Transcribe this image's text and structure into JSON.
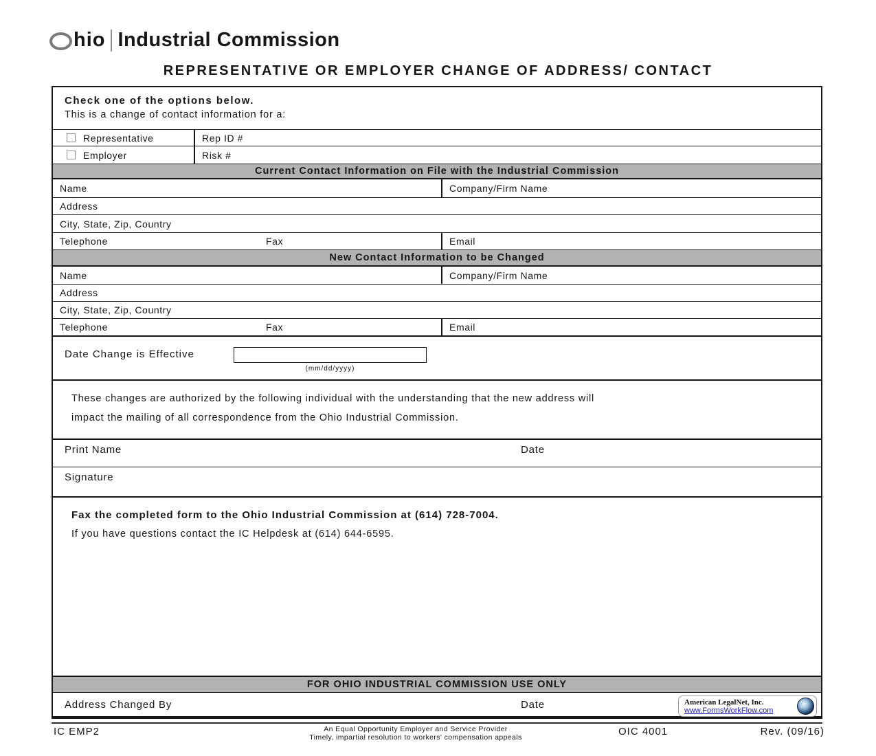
{
  "logo": {
    "name_rest": "hio",
    "division": "Industrial Commission"
  },
  "title": "REPRESENTATIVE OR EMPLOYER CHANGE OF ADDRESS/ CONTACT",
  "options": {
    "heading": "Check one of the options below.",
    "subheading": "This is a change of contact information for a:",
    "rows": [
      {
        "label": "Representative",
        "field": "Rep ID #",
        "checked": false
      },
      {
        "label": "Employer",
        "field": "Risk #",
        "checked": false
      }
    ]
  },
  "current_section": {
    "header": "Current Contact Information on File with the Industrial Commission",
    "name": "Name",
    "company": "Company/Firm Name",
    "address": "Address",
    "city": "City, State, Zip, Country",
    "telephone": "Telephone",
    "fax": "Fax",
    "email": "Email"
  },
  "new_section": {
    "header": "New Contact Information to be Changed",
    "name": "Name",
    "company": "Company/Firm Name",
    "address": "Address",
    "city": "City, State, Zip, Country",
    "telephone": "Telephone",
    "fax": "Fax",
    "email": "Email"
  },
  "date_section": {
    "label": "Date Change is Effective",
    "value": "",
    "format_hint": "(mm/dd/yyyy)"
  },
  "authorization": {
    "line1": "These changes are authorized by the following individual with the understanding that the new address will",
    "line2": "impact the mailing of all correspondence from the Ohio Industrial Commission."
  },
  "signature_section": {
    "print_name_label": "Print Name",
    "date_label": "Date",
    "signature_label": "Signature"
  },
  "instructions": {
    "fax_line": "Fax the completed form to the Ohio Industrial Commission at (614) 728-7004.",
    "help_line": "If you have questions contact the IC Helpdesk at (614) 644-6595."
  },
  "office_section": {
    "header": "FOR OHIO INDUSTRIAL COMMISSION USE ONLY",
    "address_changed_by_label": "Address Changed By",
    "date_label": "Date"
  },
  "vendor_badge": {
    "company": "American LegalNet, Inc.",
    "url": "www.FormsWorkFlow.com"
  },
  "footer": {
    "form_id": "IC EMP2",
    "center_line1": "An Equal Opportunity Employer and Service Provider",
    "center_line2": "Timely, impartial resolution to workers' compensation appeals",
    "form_code": "OIC 4001",
    "revision": "Rev. (09/16)"
  },
  "colors": {
    "section_bar_gray": "#b2b2b2",
    "link_blue": "#2222aa"
  }
}
